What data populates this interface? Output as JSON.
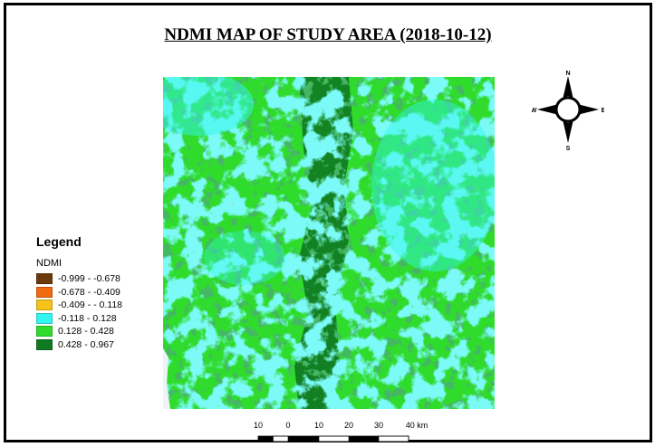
{
  "title": "NDMI MAP OF STUDY AREA (2018-10-12)",
  "compass": {
    "north": "N",
    "south": "S",
    "east": "E",
    "west": "W"
  },
  "legend": {
    "title": "Legend",
    "subtitle": "NDMI",
    "items": [
      {
        "label": "-0.999 - -0.678",
        "color": "#6b3a0c"
      },
      {
        "label": "-0.678 - -0.409",
        "color": "#f06a10"
      },
      {
        "label": "-0.409 - - 0.118",
        "color": "#f6c31a"
      },
      {
        "label": "-0.118 - 0.128",
        "color": "#34f6ee"
      },
      {
        "label": "0.128 - 0.428",
        "color": "#2fdc2c"
      },
      {
        "label": "0.428 - 0.967",
        "color": "#107a22"
      }
    ]
  },
  "scale_bar": {
    "labels": [
      "10",
      "0",
      "10",
      "20",
      "30",
      "40 km"
    ]
  },
  "colors": {
    "ndmi_dark_green": "#107a22",
    "ndmi_green": "#2fdc2c",
    "ndmi_cyan": "#34f6ee",
    "ndmi_orange": "#f06a10"
  }
}
